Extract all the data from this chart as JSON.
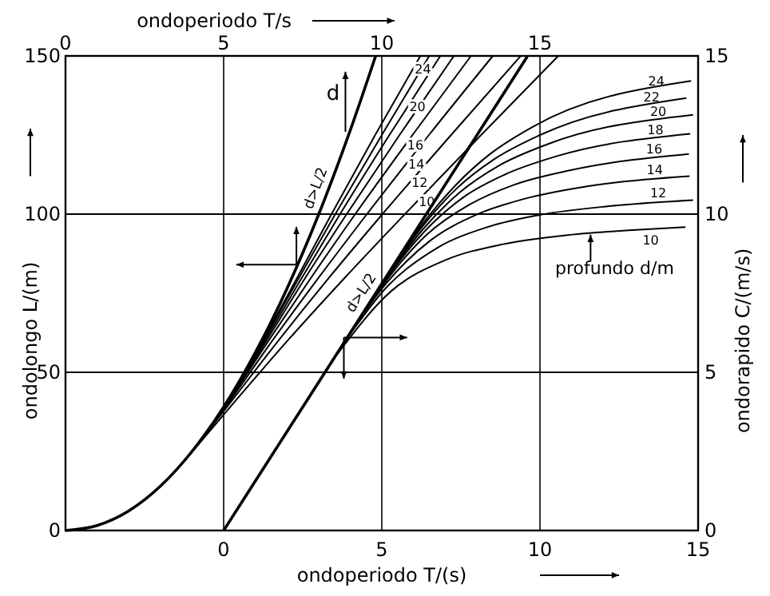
{
  "chart_data": {
    "type": "line",
    "xlabel": "ondoperiodo  T/(s)",
    "x2label": "ondoperiodo  T/s",
    "ylabel": "ondolongo  L/(m)",
    "y2label": "ondorapido  C/(m/s)",
    "xlim": [
      -5,
      15
    ],
    "xticks": [
      0,
      5,
      10,
      15
    ],
    "x2lim": [
      0,
      20
    ],
    "x2ticks": [
      0,
      5,
      10,
      15
    ],
    "ylim": [
      0,
      150
    ],
    "yticks": [
      0,
      50,
      100,
      150
    ],
    "y2lim": [
      0,
      15
    ],
    "y2ticks": [
      0,
      5,
      10,
      15
    ],
    "grid": true,
    "marker": "none",
    "line_style": "solid",
    "annotations": [
      "d",
      "profundo  d/m"
    ],
    "series": [
      {
        "name": "d>L/2",
        "axis": "x2",
        "color": "#000000",
        "x": [
          0,
          1,
          2,
          3,
          4,
          5,
          6,
          7,
          8,
          9,
          9.8
        ],
        "values": [
          0,
          1.6,
          6.2,
          14,
          25,
          39,
          56.2,
          76.4,
          99.8,
          126.4,
          149.8
        ]
      },
      {
        "name": "10",
        "axis": "x2",
        "color": "#000000",
        "x": [
          3.59,
          5.29,
          7.02,
          8.84,
          10.73,
          13.14,
          15.58
        ],
        "values": [
          20,
          40,
          60,
          80,
          100,
          125,
          150
        ]
      },
      {
        "name": "12",
        "axis": "x2",
        "color": "#000000",
        "x": [
          3.93,
          5.18,
          6.73,
          8.34,
          10.02,
          12.19,
          14.39
        ],
        "values": [
          24,
          40,
          60,
          80,
          100,
          125,
          150
        ]
      },
      {
        "name": "14",
        "axis": "x2",
        "color": "#000000",
        "x": [
          4.24,
          5.13,
          6.54,
          8.01,
          9.53,
          11.49,
          13.51
        ],
        "values": [
          28,
          40,
          60,
          80,
          100,
          125,
          150
        ]
      },
      {
        "name": "16",
        "axis": "x2",
        "color": "#000000",
        "x": [
          4.54,
          5.1,
          6.42,
          7.77,
          9.16,
          10.97,
          12.82
        ],
        "values": [
          32,
          40,
          60,
          80,
          100,
          125,
          150
        ]
      },
      {
        "axis": "x2",
        "color": "#000000",
        "x": [
          4.81,
          5.08,
          6.35,
          7.59,
          8.89,
          10.56,
          12.28
        ],
        "values": [
          36,
          40,
          60,
          80,
          100,
          125,
          150
        ]
      },
      {
        "name": "20",
        "axis": "x2",
        "color": "#000000",
        "x": [
          5.07,
          6.3,
          7.48,
          8.68,
          10.24,
          11.85
        ],
        "values": [
          40,
          60,
          80,
          100,
          125,
          150
        ]
      },
      {
        "axis": "x2",
        "color": "#000000",
        "x": [
          5.32,
          6.26,
          7.39,
          8.53,
          10,
          11.5
        ],
        "values": [
          44,
          60,
          80,
          100,
          125,
          150
        ]
      },
      {
        "name": "24",
        "axis": "x2",
        "color": "#000000",
        "x": [
          5.56,
          6.24,
          7.33,
          8.41,
          9.79,
          11.22
        ],
        "values": [
          48,
          60,
          80,
          100,
          125,
          150
        ]
      },
      {
        "name": "d>L/2",
        "axis": "y2",
        "color": "#000000",
        "x": [
          0,
          9.6
        ],
        "values": [
          0,
          14.98
        ]
      },
      {
        "name": "10",
        "axis": "y2",
        "color": "#000000",
        "x": [
          3.59,
          5.29,
          7.02,
          8.84,
          10.73,
          13.14,
          14.6
        ],
        "values": [
          5.57,
          7.56,
          8.55,
          9.05,
          9.32,
          9.51,
          9.59
        ]
      },
      {
        "name": "12",
        "axis": "y2",
        "color": "#000000",
        "x": [
          3.93,
          5.18,
          6.73,
          8.34,
          10.02,
          12.19,
          14.84
        ],
        "values": [
          6.11,
          7.72,
          8.92,
          9.59,
          9.98,
          10.25,
          10.44
        ]
      },
      {
        "name": "14",
        "axis": "y2",
        "color": "#000000",
        "x": [
          4.24,
          5.13,
          6.54,
          8.01,
          9.53,
          11.49,
          14.73
        ],
        "values": [
          6.6,
          7.8,
          9.17,
          9.99,
          10.49,
          10.88,
          11.2
        ]
      },
      {
        "name": "16",
        "axis": "y2",
        "color": "#000000",
        "x": [
          4.54,
          5.1,
          6.42,
          7.77,
          9.16,
          10.97,
          14.71
        ],
        "values": [
          7.05,
          7.84,
          9.35,
          10.3,
          10.92,
          11.39,
          11.9
        ]
      },
      {
        "name": "18",
        "axis": "y2",
        "color": "#000000",
        "x": [
          4.81,
          5.08,
          6.35,
          7.59,
          8.89,
          10.56,
          14.75
        ],
        "values": [
          7.48,
          7.87,
          9.45,
          10.54,
          11.25,
          11.84,
          12.54
        ]
      },
      {
        "name": "20",
        "axis": "y2",
        "color": "#000000",
        "x": [
          5.07,
          6.3,
          7.48,
          8.68,
          10.24,
          14.84
        ],
        "values": [
          7.89,
          9.52,
          10.7,
          11.52,
          12.21,
          13.14
        ]
      },
      {
        "name": "22",
        "axis": "y2",
        "color": "#000000",
        "x": [
          5.32,
          6.26,
          7.39,
          8.53,
          10,
          14.63
        ],
        "values": [
          8.27,
          9.58,
          10.83,
          11.72,
          12.5,
          13.67
        ]
      },
      {
        "name": "24",
        "axis": "y2",
        "color": "#000000",
        "x": [
          5.56,
          6.24,
          7.33,
          8.41,
          9.79,
          14.78
        ],
        "values": [
          8.63,
          9.62,
          10.91,
          11.89,
          12.77,
          14.21
        ]
      }
    ]
  }
}
